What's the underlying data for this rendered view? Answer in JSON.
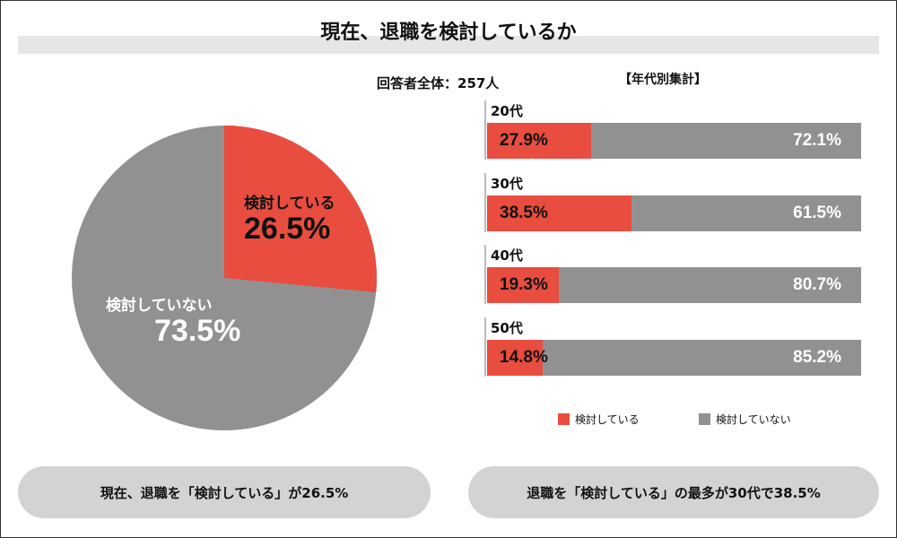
{
  "title": "現在、退職を検討しているか",
  "total_label": "回答者全体：257人",
  "by_age_label": "【年代別集計】",
  "colors": {
    "considering": "#e84d3f",
    "not_considering": "#929192"
  },
  "chart_data": [
    {
      "type": "pie",
      "slices": [
        {
          "label": "検討している",
          "value": 26.5,
          "display": "26.5%"
        },
        {
          "label": "検討していない",
          "value": 73.5,
          "display": "73.5%"
        }
      ]
    },
    {
      "type": "bar",
      "stacked": true,
      "orientation": "horizontal",
      "categories": [
        "20代",
        "30代",
        "40代",
        "50代"
      ],
      "series": [
        {
          "name": "検討している",
          "values": [
            27.9,
            38.5,
            19.3,
            14.8
          ],
          "labels": [
            "27.9%",
            "38.5%",
            "19.3%",
            "14.8%"
          ]
        },
        {
          "name": "検討していない",
          "values": [
            72.1,
            61.5,
            80.7,
            85.2
          ],
          "labels": [
            "72.1%",
            "61.5%",
            "80.7%",
            "85.2%"
          ]
        }
      ],
      "legend": [
        "検討している",
        "検討していない"
      ],
      "legend_position": "bottom"
    }
  ],
  "summary": [
    "現在、退職を「検討している」が26.5%",
    "退職を「検討している」の最多が30代で38.5%"
  ]
}
